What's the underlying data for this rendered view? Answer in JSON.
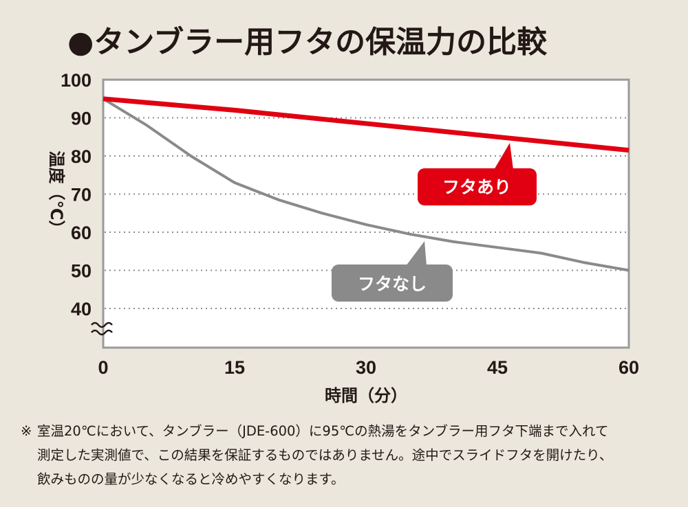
{
  "title": "●タンブラー用フタの保温力の比較",
  "colors": {
    "background": "#ebe7dd",
    "plot_background": "#ffffff",
    "with_lid": "#e10012",
    "without_lid": "#8a8a8a",
    "text": "#231815"
  },
  "chart_data": {
    "type": "line",
    "title": "●タンブラー用フタの保温力の比較",
    "xlabel": "時間（分）",
    "ylabel": "温度（℃）",
    "x_ticks": [
      "0",
      "15",
      "30",
      "45",
      "60"
    ],
    "y_ticks": [
      "100",
      "90",
      "80",
      "70",
      "60",
      "50",
      "40"
    ],
    "xlim": [
      0,
      60
    ],
    "ylim": [
      40,
      100
    ],
    "axis_break": "≈",
    "grid": "horizontal dotted",
    "series": [
      {
        "name": "フタあり",
        "x": [
          0,
          15,
          30,
          45,
          60
        ],
        "values": [
          95,
          92,
          88.5,
          85,
          81.5
        ]
      },
      {
        "name": "フタなし",
        "x": [
          0,
          5,
          10,
          15,
          20,
          25,
          30,
          35,
          40,
          45,
          50,
          55,
          60
        ],
        "values": [
          95,
          88,
          80,
          73,
          68.5,
          65,
          62,
          59.5,
          57.5,
          56,
          54.5,
          52,
          50
        ]
      }
    ]
  },
  "note": {
    "mark": "※",
    "lines": [
      "室温20℃において、タンブラー（JDE-600）に95℃の熱湯をタンブラー用フタ下端まで入れて",
      "測定した実測値で、この結果を保証するものではありません。途中でスライドフタを開けたり、",
      "飲みものの量が少なくなると冷めやすくなります。"
    ]
  }
}
